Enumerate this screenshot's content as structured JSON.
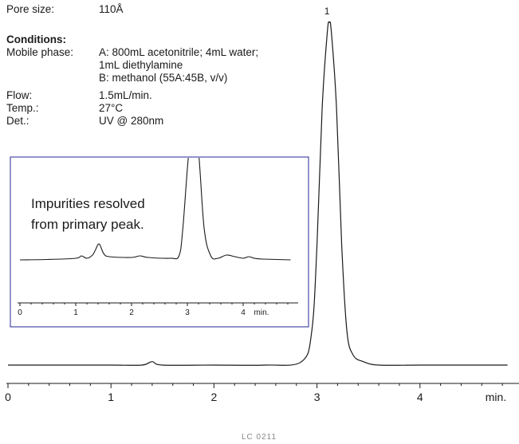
{
  "conditions": {
    "pore_size_label": "Pore size:",
    "pore_size_value": "110Å",
    "heading": "Conditions:",
    "mobile_phase_label": "Mobile phase:",
    "mobile_phase_a1": "A:  800mL acetonitrile; 4mL water;",
    "mobile_phase_a2": "1mL diethylamine",
    "mobile_phase_b": "B:  methanol (55A:45B, v/v)",
    "flow_label": "Flow:",
    "flow_value": "1.5mL/min.",
    "temp_label": "Temp.:",
    "temp_value": "27°C",
    "det_label": "Det.:",
    "det_value": "UV @ 280nm"
  },
  "footer": {
    "code": "LC 0211"
  },
  "chart_data": [
    {
      "type": "line",
      "title": "",
      "xlabel": "",
      "ylabel": "",
      "x_unit": "min.",
      "xlim": [
        0,
        4.85
      ],
      "x_ticks": [
        0,
        1,
        2,
        3,
        4
      ],
      "grid": false,
      "peak_labels": [
        {
          "label": "1",
          "x": 3.12
        }
      ],
      "series": [
        {
          "x": [
            0,
            0.5,
            1.0,
            1.3,
            1.4,
            1.5,
            2.0,
            2.5,
            2.85,
            2.95,
            3.0,
            3.05,
            3.1,
            3.12,
            3.14,
            3.19,
            3.24,
            3.29,
            3.35,
            3.45,
            3.6,
            4.0,
            4.5,
            4.85
          ],
          "y": [
            0,
            0,
            0,
            0,
            0.01,
            0,
            0,
            0,
            0.01,
            0.1,
            0.35,
            0.75,
            0.97,
            1.0,
            0.97,
            0.75,
            0.35,
            0.1,
            0.03,
            0.01,
            0,
            0,
            0,
            0
          ]
        }
      ]
    },
    {
      "type": "line",
      "title": "",
      "annotation_line1": "Impurities resolved",
      "annotation_line2": "from primary peak.",
      "x_unit": "min.",
      "xlim": [
        0,
        4.85
      ],
      "x_ticks": [
        0,
        1,
        2,
        3,
        4
      ],
      "grid": false,
      "series": [
        {
          "x": [
            0,
            0.5,
            1.0,
            1.1,
            1.2,
            1.3,
            1.35,
            1.42,
            1.5,
            1.6,
            2.0,
            2.15,
            2.3,
            2.7,
            2.85,
            2.92,
            3.05,
            3.18,
            3.3,
            3.42,
            3.55,
            3.7,
            3.85,
            4.0,
            4.1,
            4.2,
            4.35,
            4.85
          ],
          "y": [
            0,
            0.005,
            0.02,
            0.05,
            0.02,
            0.06,
            0.12,
            0.2,
            0.08,
            0.04,
            0.03,
            0.05,
            0.03,
            0.02,
            0.05,
            0.4,
            1.5,
            1.5,
            0.4,
            0.05,
            0.02,
            0.06,
            0.04,
            0.02,
            0.04,
            0.02,
            0.01,
            0
          ]
        }
      ]
    }
  ]
}
